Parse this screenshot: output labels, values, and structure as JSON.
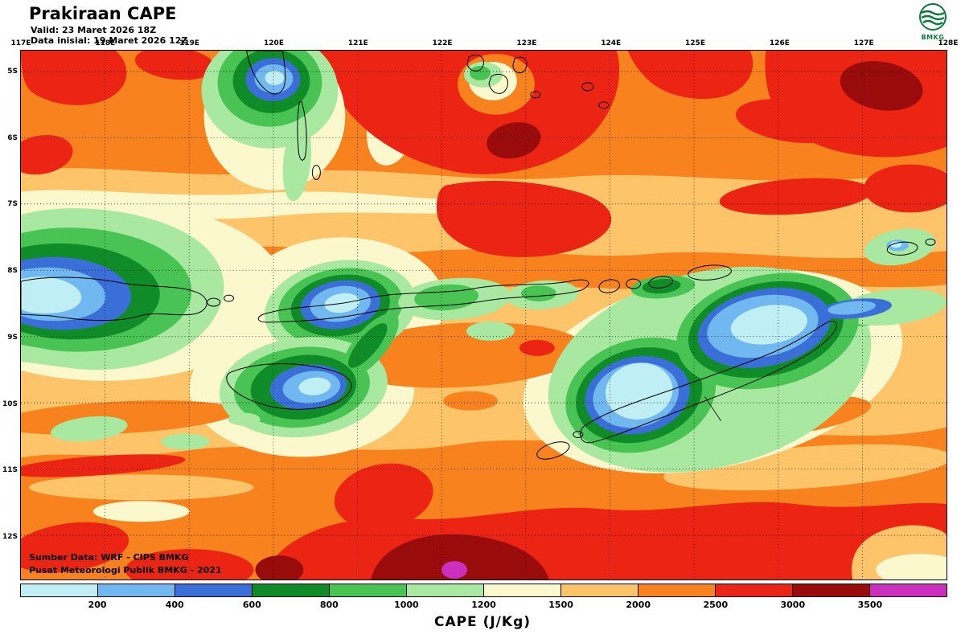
{
  "header": {
    "title": "Prakiraan CAPE",
    "valid_line": "Valid: 23 Maret 2026 18Z",
    "init_line": "Data inisial: 19 Maret 2026 12Z",
    "logo_text": "BMKG"
  },
  "map": {
    "lon_labels": [
      "117E",
      "118E",
      "119E",
      "120E",
      "121E",
      "122E",
      "123E",
      "124E",
      "125E",
      "126E",
      "127E",
      "128E"
    ],
    "lat_labels": [
      "5S",
      "6S",
      "7S",
      "8S",
      "9S",
      "10S",
      "11S",
      "12S"
    ],
    "source_line1": "Sumber Data: WRF - CIPS BMKG",
    "source_line2": "Pusat Meteorologi Publik BMKG - 2021"
  },
  "legend": {
    "title": "CAPE (J/Kg)",
    "unit": "J/Kg",
    "boundary_labels": [
      "200",
      "400",
      "600",
      "800",
      "1000",
      "1200",
      "1500",
      "2000",
      "2500",
      "3000",
      "3500"
    ],
    "segment_colors": [
      "#bfeef5",
      "#72b8f0",
      "#3a6fd8",
      "#0f8c28",
      "#49c353",
      "#a8e8a0",
      "#fcf8cd",
      "#fdc46a",
      "#f8821e",
      "#eb2413",
      "#9a0b0b",
      "#cc2fbe"
    ]
  }
}
